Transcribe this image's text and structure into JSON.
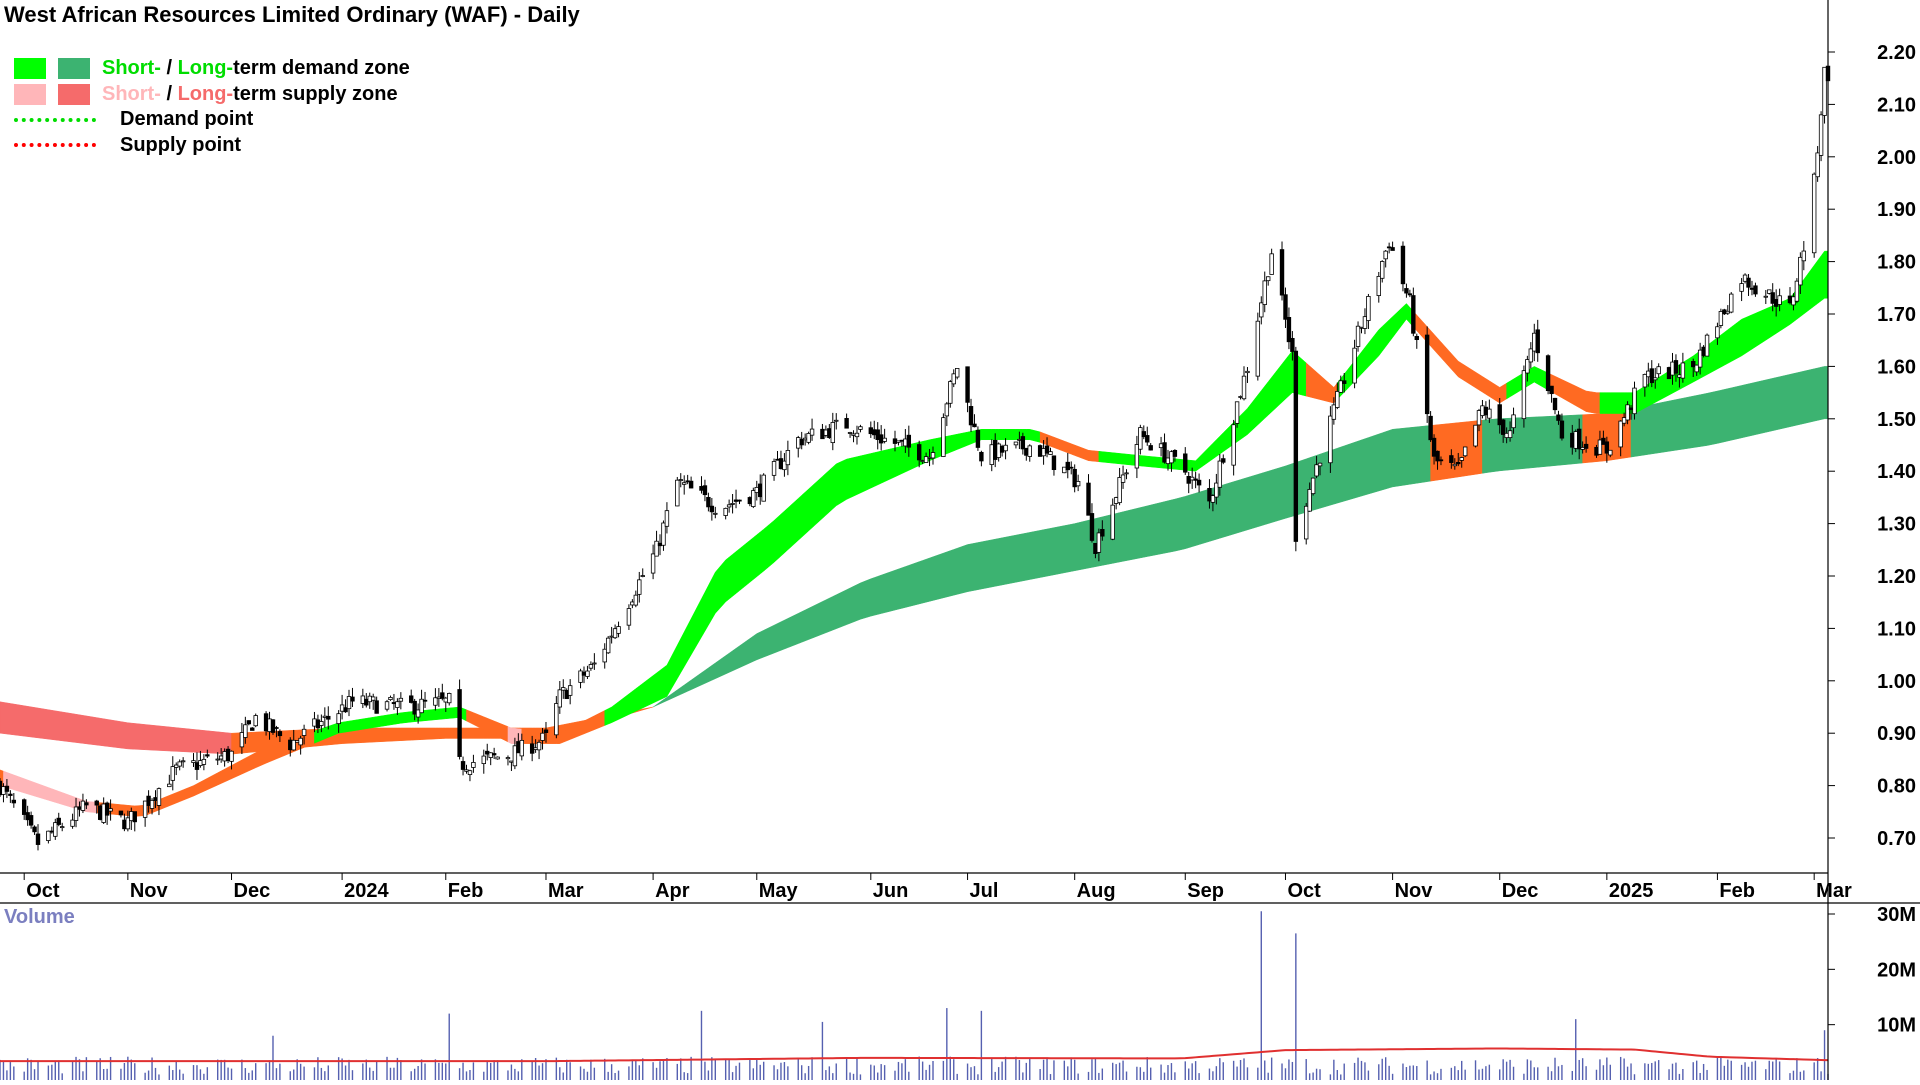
{
  "chart_title": "West African Resources Limited Ordinary (WAF) - Daily",
  "legend": {
    "demand": {
      "short": "Short-",
      "sep": " / ",
      "long": "Long-",
      "rest": "term demand zone"
    },
    "supply": {
      "short": "Short-",
      "sep": " / ",
      "long": "Long-",
      "rest": "term supply zone"
    },
    "demand_point": "Demand point",
    "supply_point": "Supply point"
  },
  "volume_title": "Volume",
  "colors": {
    "short_demand": "#00ff00",
    "long_demand": "#3cb371",
    "short_supply": "#ffb6b9",
    "long_supply": "#f56b6b",
    "transition_zone": "#ff6a22",
    "demand_point": "#00dd00",
    "supply_point": "#ff0000",
    "candle": "#000000",
    "volume_bar": "#5560b0",
    "volume_average": "#e03030",
    "axis_text": "#000000",
    "volume_label": "#7b7fc0"
  },
  "chart_data": {
    "type": "candlestick",
    "title": "West African Resources Limited Ordinary (WAF) - Daily",
    "price_axis": {
      "ylim": [
        0.61,
        2.25
      ],
      "ticks": [
        "0.70",
        "0.80",
        "0.90",
        "1.00",
        "1.10",
        "1.20",
        "1.30",
        "1.40",
        "1.50",
        "1.60",
        "1.70",
        "1.80",
        "1.90",
        "2.00",
        "2.10",
        "2.20"
      ]
    },
    "time_axis": {
      "range": [
        "2023-09-25",
        "2025-03-07"
      ],
      "ticks": [
        {
          "label": "Oct",
          "date": "2023-10-02"
        },
        {
          "label": "Nov",
          "date": "2023-11-01"
        },
        {
          "label": "Dec",
          "date": "2023-12-01"
        },
        {
          "label": "2024",
          "date": "2024-01-02"
        },
        {
          "label": "Feb",
          "date": "2024-02-01"
        },
        {
          "label": "Mar",
          "date": "2024-03-01"
        },
        {
          "label": "Apr",
          "date": "2024-04-01"
        },
        {
          "label": "May",
          "date": "2024-05-01"
        },
        {
          "label": "Jun",
          "date": "2024-06-03"
        },
        {
          "label": "Jul",
          "date": "2024-07-01"
        },
        {
          "label": "Aug",
          "date": "2024-08-01"
        },
        {
          "label": "Sep",
          "date": "2024-09-02"
        },
        {
          "label": "Oct",
          "date": "2024-10-01"
        },
        {
          "label": "Nov",
          "date": "2024-11-01"
        },
        {
          "label": "Dec",
          "date": "2024-12-02"
        },
        {
          "label": "2025",
          "date": "2025-01-02"
        },
        {
          "label": "Feb",
          "date": "2025-02-03"
        },
        {
          "label": "Mar",
          "date": "2025-03-03"
        }
      ]
    },
    "price_close_points": [
      [
        "2023-09-25",
        0.8
      ],
      [
        "2023-10-06",
        0.69
      ],
      [
        "2023-10-20",
        0.76
      ],
      [
        "2023-11-01",
        0.73
      ],
      [
        "2023-11-15",
        0.83
      ],
      [
        "2023-12-01",
        0.86
      ],
      [
        "2023-12-08",
        0.93
      ],
      [
        "2023-12-18",
        0.88
      ],
      [
        "2024-01-05",
        0.96
      ],
      [
        "2024-01-20",
        0.95
      ],
      [
        "2024-02-02",
        0.96
      ],
      [
        "2024-02-05",
        0.84
      ],
      [
        "2024-02-20",
        0.86
      ],
      [
        "2024-03-01",
        0.89
      ],
      [
        "2024-03-05",
        0.97
      ],
      [
        "2024-03-15",
        1.03
      ],
      [
        "2024-04-02",
        1.25
      ],
      [
        "2024-04-08",
        1.38
      ],
      [
        "2024-04-20",
        1.33
      ],
      [
        "2024-05-01",
        1.36
      ],
      [
        "2024-05-13",
        1.46
      ],
      [
        "2024-05-27",
        1.49
      ],
      [
        "2024-06-03",
        1.47
      ],
      [
        "2024-06-20",
        1.43
      ],
      [
        "2024-06-28",
        1.6
      ],
      [
        "2024-07-05",
        1.43
      ],
      [
        "2024-07-20",
        1.45
      ],
      [
        "2024-08-02",
        1.38
      ],
      [
        "2024-08-07",
        1.26
      ],
      [
        "2024-08-20",
        1.47
      ],
      [
        "2024-09-02",
        1.4
      ],
      [
        "2024-09-09",
        1.34
      ],
      [
        "2024-09-20",
        1.6
      ],
      [
        "2024-09-27",
        1.82
      ],
      [
        "2024-10-03",
        1.62
      ],
      [
        "2024-10-04",
        1.28
      ],
      [
        "2024-10-10",
        1.41
      ],
      [
        "2024-10-22",
        1.66
      ],
      [
        "2024-10-31",
        1.84
      ],
      [
        "2024-11-06",
        1.72
      ],
      [
        "2024-11-13",
        1.42
      ],
      [
        "2024-11-20",
        1.4
      ],
      [
        "2024-11-27",
        1.52
      ],
      [
        "2024-12-05",
        1.47
      ],
      [
        "2024-12-12",
        1.66
      ],
      [
        "2024-12-20",
        1.47
      ],
      [
        "2025-01-02",
        1.44
      ],
      [
        "2025-01-13",
        1.58
      ],
      [
        "2025-01-27",
        1.6
      ],
      [
        "2025-02-10",
        1.77
      ],
      [
        "2025-02-24",
        1.71
      ],
      [
        "2025-02-28",
        1.83
      ],
      [
        "2025-03-03",
        1.95
      ],
      [
        "2025-03-06",
        2.16
      ]
    ],
    "zones": {
      "short_term_band": [
        [
          "2023-09-25",
          0.83,
          0.8
        ],
        [
          "2023-10-20",
          0.77,
          0.75
        ],
        [
          "2023-11-05",
          0.76,
          0.74
        ],
        [
          "2023-11-20",
          0.8,
          0.78
        ],
        [
          "2023-12-10",
          0.87,
          0.84
        ],
        [
          "2024-01-01",
          0.92,
          0.9
        ],
        [
          "2024-01-20",
          0.94,
          0.92
        ],
        [
          "2024-02-05",
          0.95,
          0.93
        ],
        [
          "2024-02-20",
          0.91,
          0.88
        ],
        [
          "2024-03-05",
          0.9,
          0.88
        ],
        [
          "2024-03-20",
          0.95,
          0.92
        ],
        [
          "2024-04-05",
          1.03,
          0.97
        ],
        [
          "2024-04-20",
          1.22,
          1.14
        ],
        [
          "2024-05-05",
          1.3,
          1.22
        ],
        [
          "2024-05-25",
          1.42,
          1.34
        ],
        [
          "2024-06-20",
          1.46,
          1.42
        ],
        [
          "2024-07-05",
          1.48,
          1.46
        ],
        [
          "2024-07-20",
          1.48,
          1.46
        ],
        [
          "2024-08-05",
          1.44,
          1.42
        ],
        [
          "2024-08-20",
          1.43,
          1.41
        ],
        [
          "2024-09-05",
          1.42,
          1.4
        ],
        [
          "2024-09-20",
          1.52,
          1.47
        ],
        [
          "2024-10-03",
          1.63,
          1.55
        ],
        [
          "2024-10-15",
          1.56,
          1.53
        ],
        [
          "2024-10-28",
          1.67,
          1.62
        ],
        [
          "2024-11-05",
          1.72,
          1.69
        ],
        [
          "2024-11-20",
          1.61,
          1.58
        ],
        [
          "2024-12-02",
          1.56,
          1.53
        ],
        [
          "2024-12-12",
          1.6,
          1.57
        ],
        [
          "2024-12-28",
          1.55,
          1.51
        ],
        [
          "2025-01-10",
          1.55,
          1.51
        ],
        [
          "2025-01-27",
          1.62,
          1.57
        ],
        [
          "2025-02-10",
          1.69,
          1.62
        ],
        [
          "2025-02-24",
          1.73,
          1.68
        ],
        [
          "2025-03-06",
          1.82,
          1.73
        ]
      ],
      "long_term_band": [
        [
          "2023-09-25",
          0.96,
          0.9
        ],
        [
          "2023-11-01",
          0.92,
          0.87
        ],
        [
          "2023-12-01",
          0.9,
          0.86
        ],
        [
          "2024-01-02",
          0.91,
          0.88
        ],
        [
          "2024-02-01",
          0.91,
          0.89
        ],
        [
          "2024-03-01",
          0.91,
          0.89
        ],
        [
          "2024-04-01",
          0.95,
          0.95
        ],
        [
          "2024-05-01",
          1.09,
          1.04
        ],
        [
          "2024-06-01",
          1.19,
          1.12
        ],
        [
          "2024-07-01",
          1.26,
          1.17
        ],
        [
          "2024-08-01",
          1.3,
          1.21
        ],
        [
          "2024-09-01",
          1.35,
          1.25
        ],
        [
          "2024-10-01",
          1.41,
          1.31
        ],
        [
          "2024-11-01",
          1.48,
          1.37
        ],
        [
          "2024-12-01",
          1.5,
          1.4
        ],
        [
          "2025-01-02",
          1.51,
          1.42
        ],
        [
          "2025-02-01",
          1.55,
          1.45
        ],
        [
          "2025-03-06",
          1.6,
          1.5
        ]
      ]
    },
    "volume": {
      "axis_ticks": [
        "10M",
        "20M",
        "30M"
      ],
      "ylim": [
        0,
        33
      ],
      "typical_volume_millions": 2.5,
      "spikes_millions": [
        [
          "2023-12-13",
          8
        ],
        [
          "2024-02-02",
          12
        ],
        [
          "2024-04-15",
          12.5
        ],
        [
          "2024-05-20",
          10.5
        ],
        [
          "2024-06-25",
          13
        ],
        [
          "2024-07-05",
          12.5
        ],
        [
          "2024-09-24",
          30.5
        ],
        [
          "2024-10-04",
          26.5
        ],
        [
          "2024-12-24",
          11
        ],
        [
          "2025-03-06",
          9
        ]
      ],
      "average_millions": [
        [
          "2023-09-25",
          3.4
        ],
        [
          "2024-03-01",
          3.4
        ],
        [
          "2024-06-01",
          4.0
        ],
        [
          "2024-09-01",
          3.9
        ],
        [
          "2024-10-01",
          5.4
        ],
        [
          "2024-12-01",
          5.7
        ],
        [
          "2025-01-10",
          5.5
        ],
        [
          "2025-02-01",
          4.2
        ],
        [
          "2025-03-06",
          3.6
        ]
      ]
    }
  }
}
